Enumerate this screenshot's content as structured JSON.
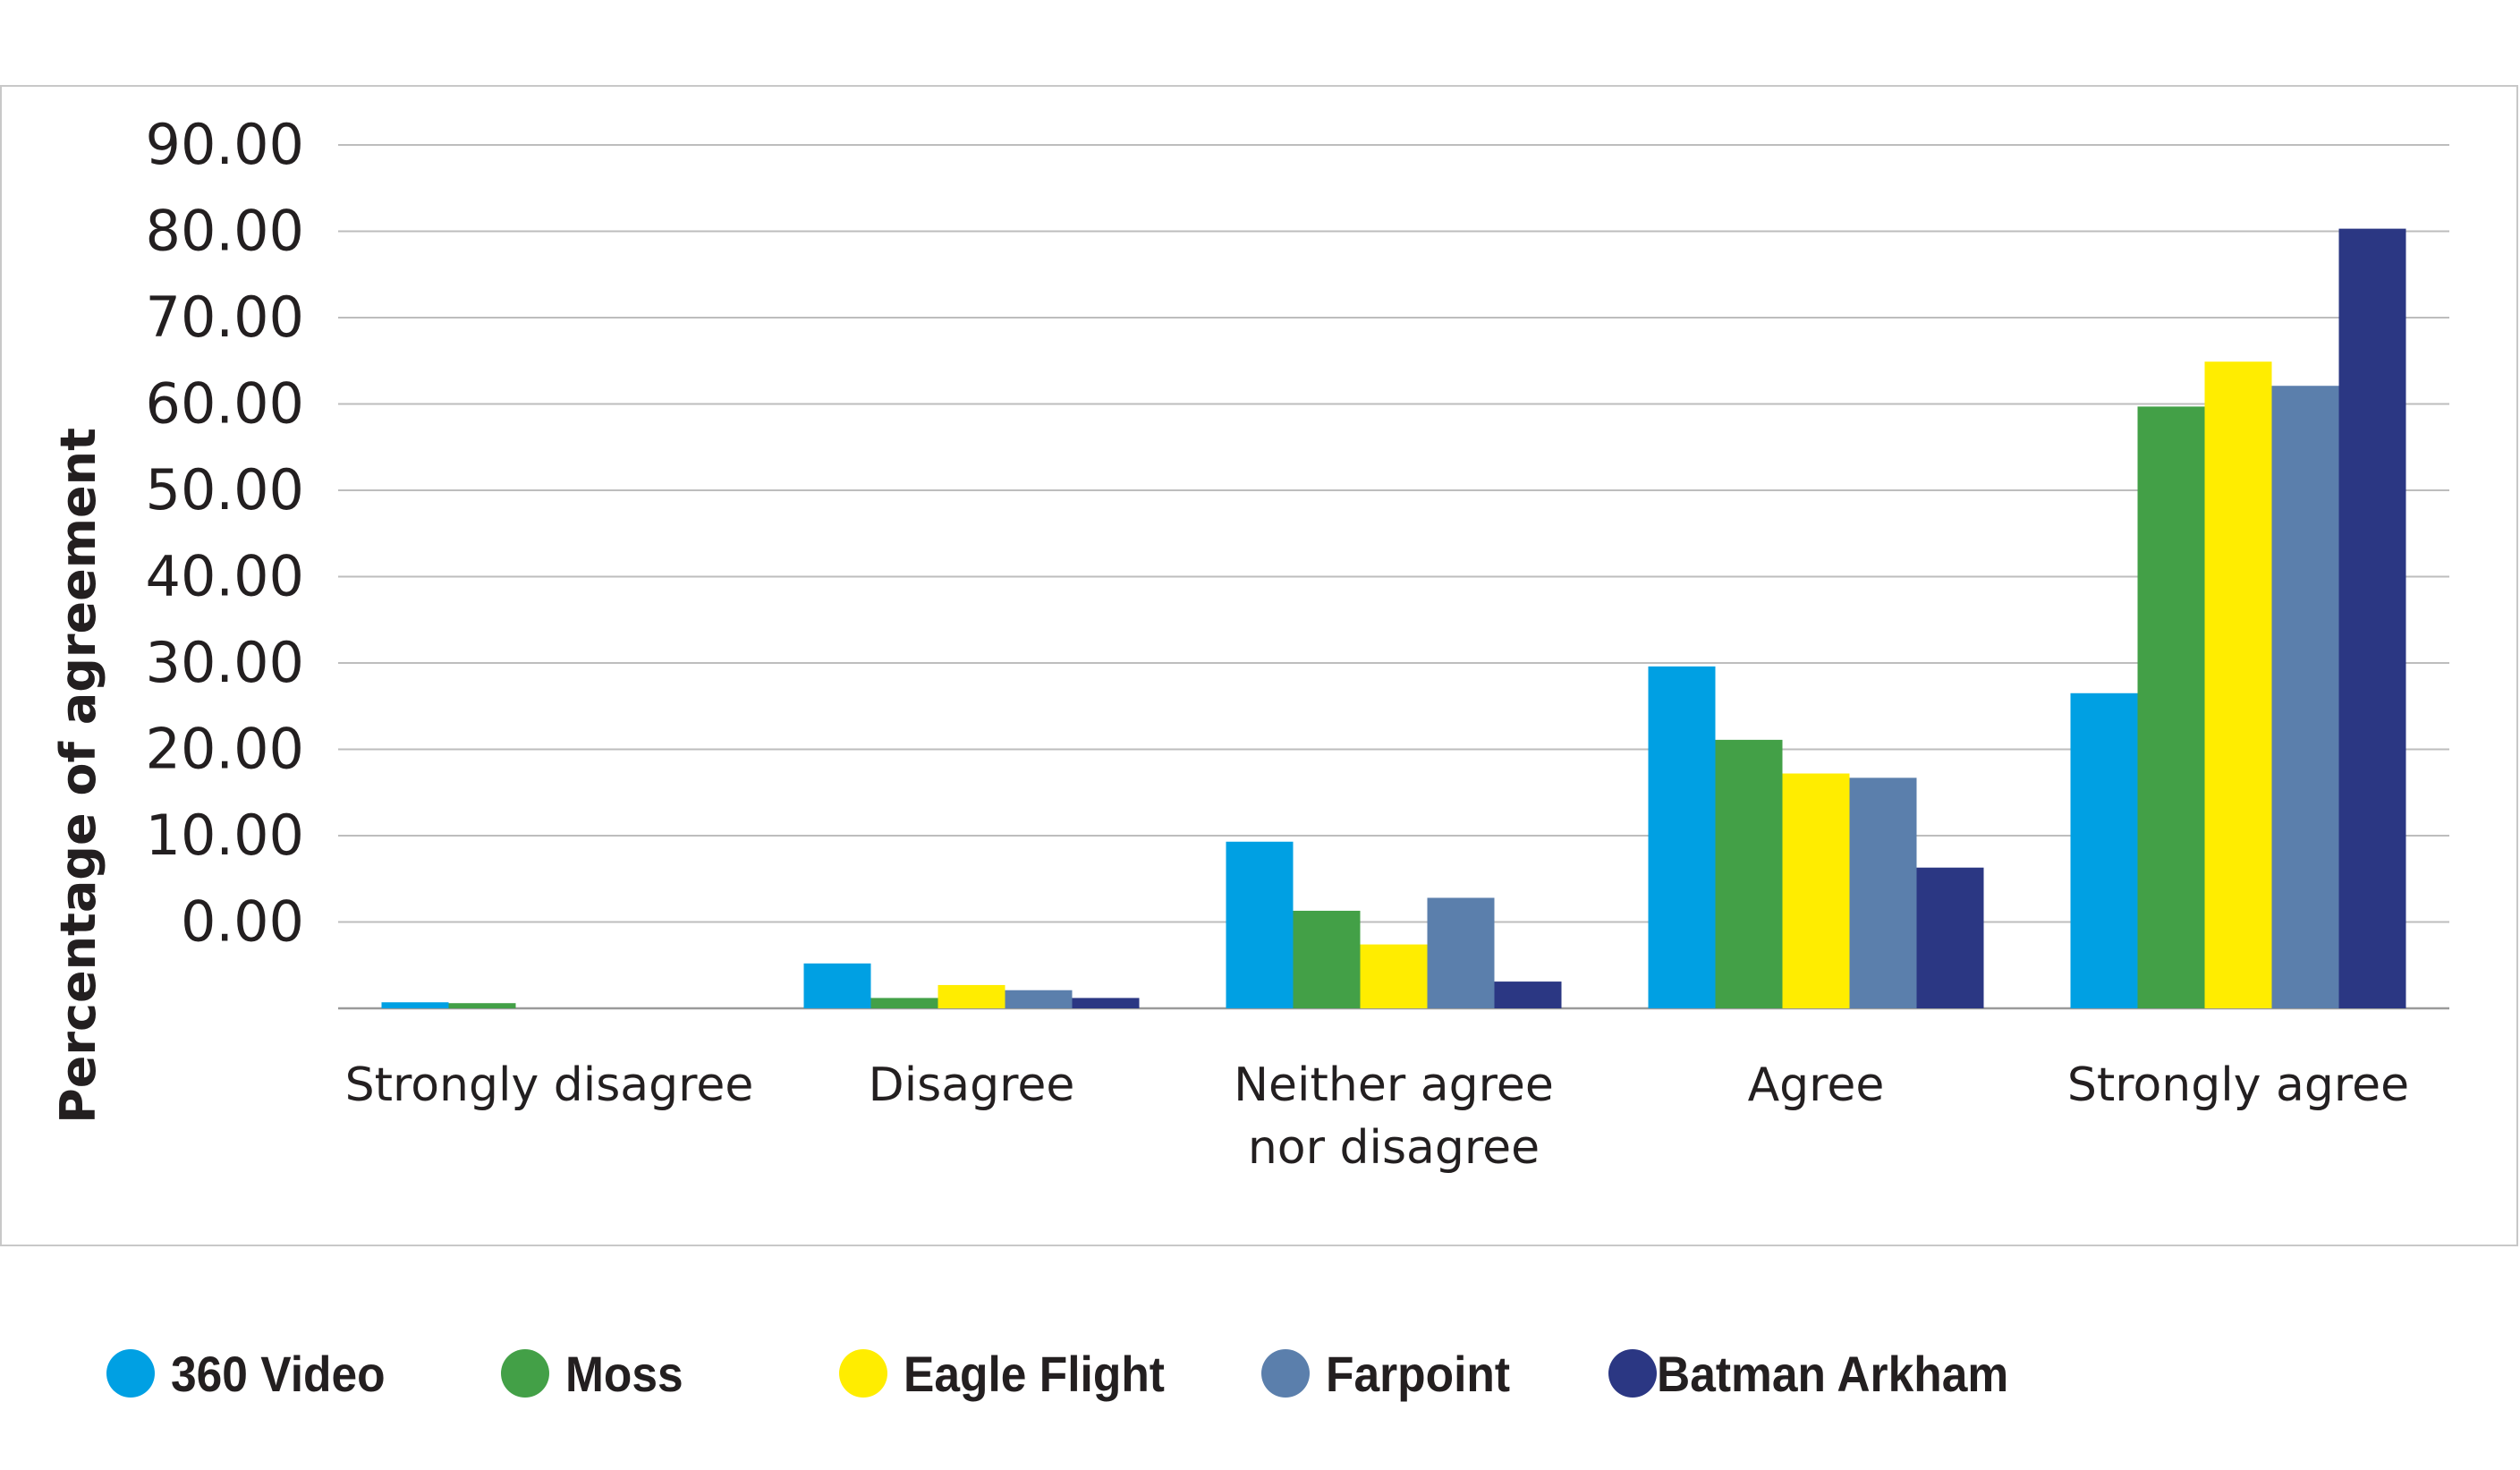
{
  "chart_data": {
    "type": "bar",
    "title": "",
    "xlabel": "",
    "ylabel": "Percentage of agreement",
    "ylim": [
      -10,
      90
    ],
    "y_ticks": [
      "90.00",
      "80.00",
      "70.00",
      "60.00",
      "50.00",
      "40.00",
      "30.00",
      "20.00",
      "10.00",
      "0.00"
    ],
    "categories": [
      "Strongly disagree",
      "Disagree",
      "Neither agree nor disagree",
      "Agree",
      "Strongly agree"
    ],
    "category_lines": [
      [
        "Strongly disagree"
      ],
      [
        "Disagree"
      ],
      [
        "Neither agree",
        "nor disagree"
      ],
      [
        "Agree"
      ],
      [
        "Strongly agree"
      ]
    ],
    "series": [
      {
        "name": "360 Video",
        "color": "#00a0e3",
        "values": [
          -9.3,
          -4.8,
          9.3,
          29.6,
          26.5
        ]
      },
      {
        "name": "Moss",
        "color": "#43a047",
        "values": [
          -9.4,
          -8.8,
          1.3,
          21.1,
          59.7
        ]
      },
      {
        "name": "Eagle Flight",
        "color": "#ffed00",
        "values": [
          -10,
          -7.3,
          -2.6,
          17.2,
          64.9
        ]
      },
      {
        "name": "Farpoint",
        "color": "#5b7fac",
        "values": [
          -10,
          -7.9,
          2.8,
          16.7,
          62.1
        ]
      },
      {
        "name": "Batman Arkham",
        "color": "#2b3783",
        "values": [
          -10,
          -8.8,
          -6.9,
          6.3,
          80.3
        ]
      }
    ],
    "grid": true,
    "legend_position": "bottom"
  }
}
